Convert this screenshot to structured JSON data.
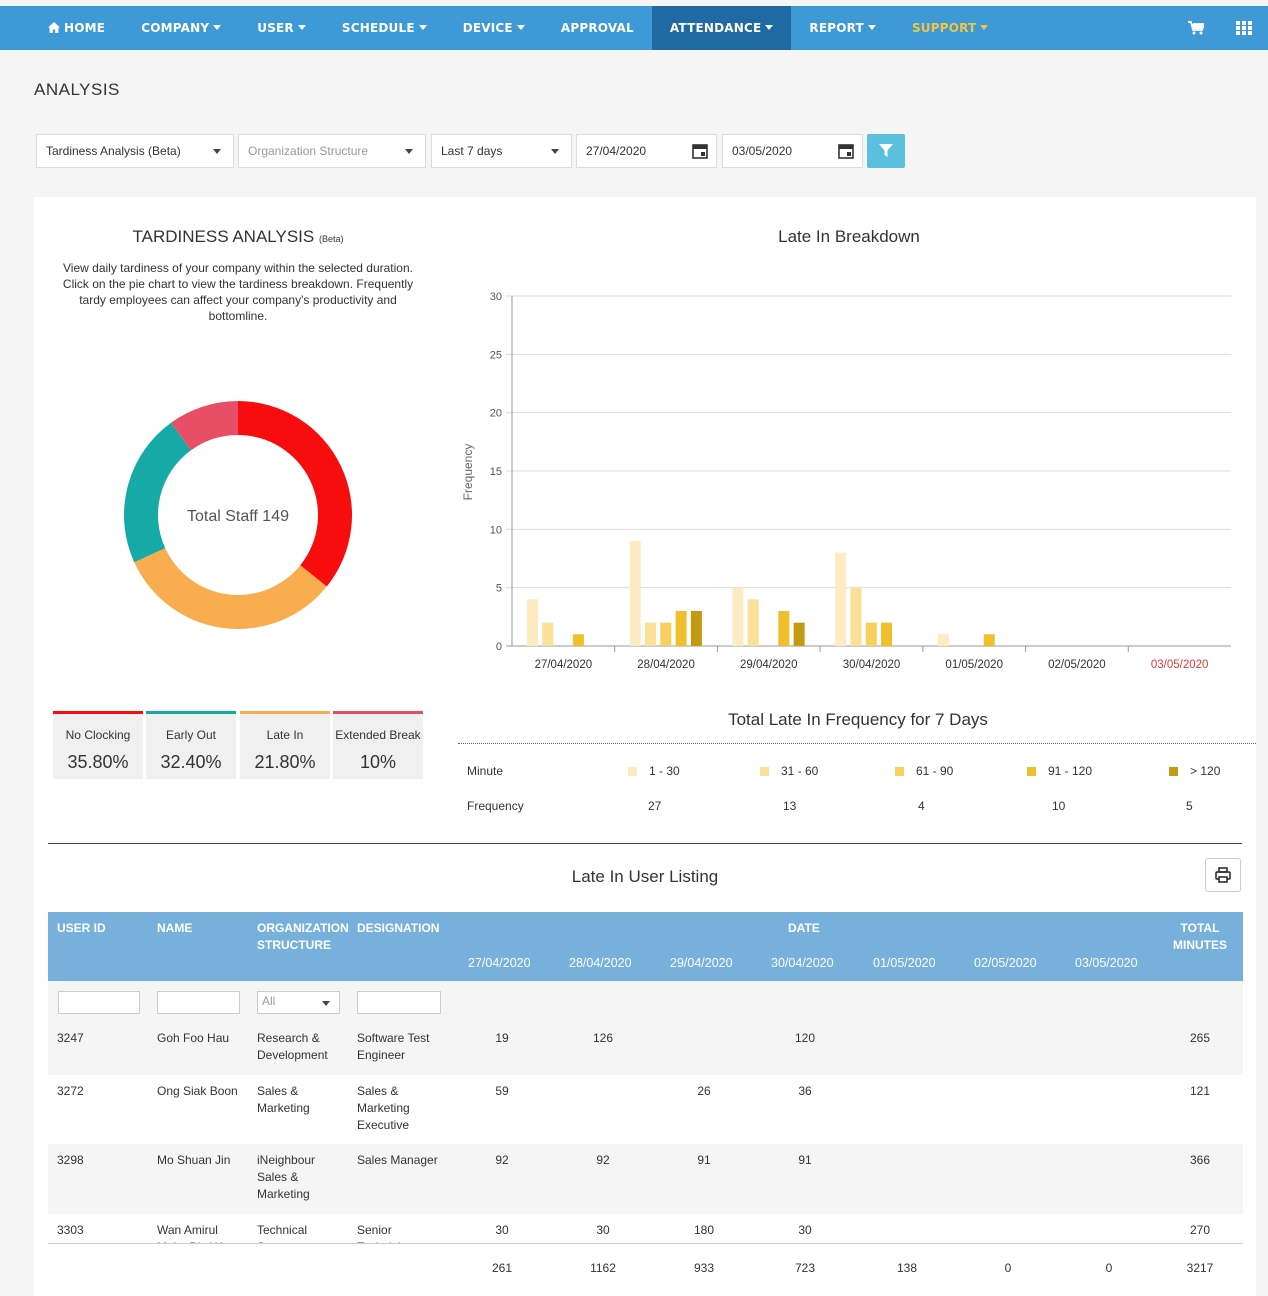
{
  "nav": {
    "items": [
      {
        "label": "HOME",
        "icon": "home-icon"
      },
      {
        "label": "COMPANY",
        "caret": true
      },
      {
        "label": "USER",
        "caret": true
      },
      {
        "label": "SCHEDULE",
        "caret": true
      },
      {
        "label": "DEVICE",
        "caret": true
      },
      {
        "label": "APPROVAL"
      },
      {
        "label": "ATTENDANCE",
        "caret": true,
        "active": true
      },
      {
        "label": "REPORT",
        "caret": true
      },
      {
        "label": "SUPPORT",
        "caret": true
      }
    ],
    "right_icons": [
      "cart-icon",
      "grid-icon"
    ]
  },
  "page": {
    "title": "ANALYSIS"
  },
  "filters": {
    "analysis_type": "Tardiness Analysis (Beta)",
    "org_placeholder": "Organization Structure",
    "range": "Last 7 days",
    "start_date": "27/04/2020",
    "end_date": "03/05/2020"
  },
  "tardiness": {
    "title": "TARDINESS ANALYSIS",
    "beta": "(Beta)",
    "description": "View daily tardiness of your company within the selected duration. Click on the pie chart to view the tardiness breakdown. Frequently tardy employees can affect your company's productivity and bottomline.",
    "donut_center": "Total Staff 149",
    "segments": [
      {
        "name": "No Clocking",
        "percent": 35.8,
        "label": "35.80%",
        "color": "#f70d0d"
      },
      {
        "name": "Early Out",
        "percent": 32.4,
        "label": "32.40%",
        "color": "#f9ad4e"
      },
      {
        "name": "Late In",
        "percent": 21.8,
        "label": "21.80%",
        "color": "#16a9a5"
      },
      {
        "name": "Extended Break",
        "percent": 10,
        "label": "10%",
        "color": "#e84f66"
      }
    ],
    "stat_bar_colors": [
      "#f70d0d",
      "#16a9a5",
      "#f9ad4e",
      "#e84f66"
    ]
  },
  "chart_data": {
    "type": "bar",
    "title": "Late In Breakdown",
    "ylabel": "Frequency",
    "ylim": [
      0,
      30
    ],
    "yticks": [
      0,
      5,
      10,
      15,
      20,
      25,
      30
    ],
    "categories": [
      "27/04/2020",
      "28/04/2020",
      "29/04/2020",
      "30/04/2020",
      "01/05/2020",
      "02/05/2020",
      "03/05/2020"
    ],
    "highlight_category_color": "#e53935",
    "series": [
      {
        "name": "1 - 30",
        "color": "#fdebc2",
        "values": [
          4,
          9,
          5,
          8,
          1,
          0,
          0
        ]
      },
      {
        "name": "31 - 60",
        "color": "#fbe09a",
        "values": [
          2,
          2,
          4,
          5,
          0,
          0,
          0
        ]
      },
      {
        "name": "61 - 90",
        "color": "#f7d05f",
        "values": [
          0,
          2,
          0,
          2,
          0,
          0,
          0
        ]
      },
      {
        "name": "91 - 120",
        "color": "#efbf2c",
        "values": [
          1,
          3,
          3,
          2,
          1,
          0,
          0
        ]
      },
      {
        "name": "> 120",
        "color": "#c49a12",
        "values": [
          0,
          3,
          2,
          0,
          0,
          0,
          0
        ]
      }
    ]
  },
  "frequency": {
    "title": "Total Late In Frequency for 7 Days",
    "row_minute": "Minute",
    "row_frequency": "Frequency",
    "buckets": [
      {
        "label": "1 - 30",
        "value": "27",
        "color": "#fdebc2"
      },
      {
        "label": "31 - 60",
        "value": "13",
        "color": "#fbe09a"
      },
      {
        "label": "61 - 90",
        "value": "4",
        "color": "#f7d05f"
      },
      {
        "label": "91 - 120",
        "value": "10",
        "color": "#efbf2c"
      },
      {
        "label": "> 120",
        "value": "5",
        "color": "#c49a12"
      }
    ]
  },
  "listing": {
    "title": "Late In User Listing",
    "headers": {
      "user_id": "USER ID",
      "name": "NAME",
      "org_1": "ORGANIZATION",
      "org_2": "STRUCTURE",
      "designation": "DESIGNATION",
      "date": "DATE",
      "total_1": "TOTAL",
      "total_2": "MINUTES"
    },
    "dates": [
      "27/04/2020",
      "28/04/2020",
      "29/04/2020",
      "30/04/2020",
      "01/05/2020",
      "02/05/2020",
      "03/05/2020"
    ],
    "org_filter": "All",
    "rows": [
      {
        "id": "3247",
        "name": [
          "Goh Foo Hau"
        ],
        "org": [
          "Research &",
          "Development"
        ],
        "designation": [
          "Software Test",
          "Engineer"
        ],
        "days": [
          "19",
          "126",
          "",
          "120",
          "",
          "",
          ""
        ],
        "total": "265"
      },
      {
        "id": "3272",
        "name": [
          "Ong Siak Boon"
        ],
        "org": [
          "Sales &",
          "Marketing"
        ],
        "designation": [
          "Sales &",
          "Marketing",
          "Executive"
        ],
        "days": [
          "59",
          "",
          "26",
          "36",
          "",
          "",
          ""
        ],
        "total": "121"
      },
      {
        "id": "3298",
        "name": [
          "Mo Shuan Jin"
        ],
        "org": [
          "iNeighbour",
          "Sales &",
          "Marketing"
        ],
        "designation": [
          "Sales Manager"
        ],
        "days": [
          "92",
          "92",
          "91",
          "91",
          "",
          "",
          ""
        ],
        "total": "366"
      },
      {
        "id": "3303",
        "name": [
          "Wan Amirul",
          "Muim Bin Wan"
        ],
        "org": [
          "Technical",
          "Support"
        ],
        "designation": [
          "Senior",
          "Technician"
        ],
        "days": [
          "30",
          "30",
          "180",
          "30",
          "",
          "",
          ""
        ],
        "total": "270"
      }
    ],
    "totals": [
      "261",
      "1162",
      "933",
      "723",
      "138",
      "0",
      "0"
    ],
    "grand_total": "3217"
  }
}
